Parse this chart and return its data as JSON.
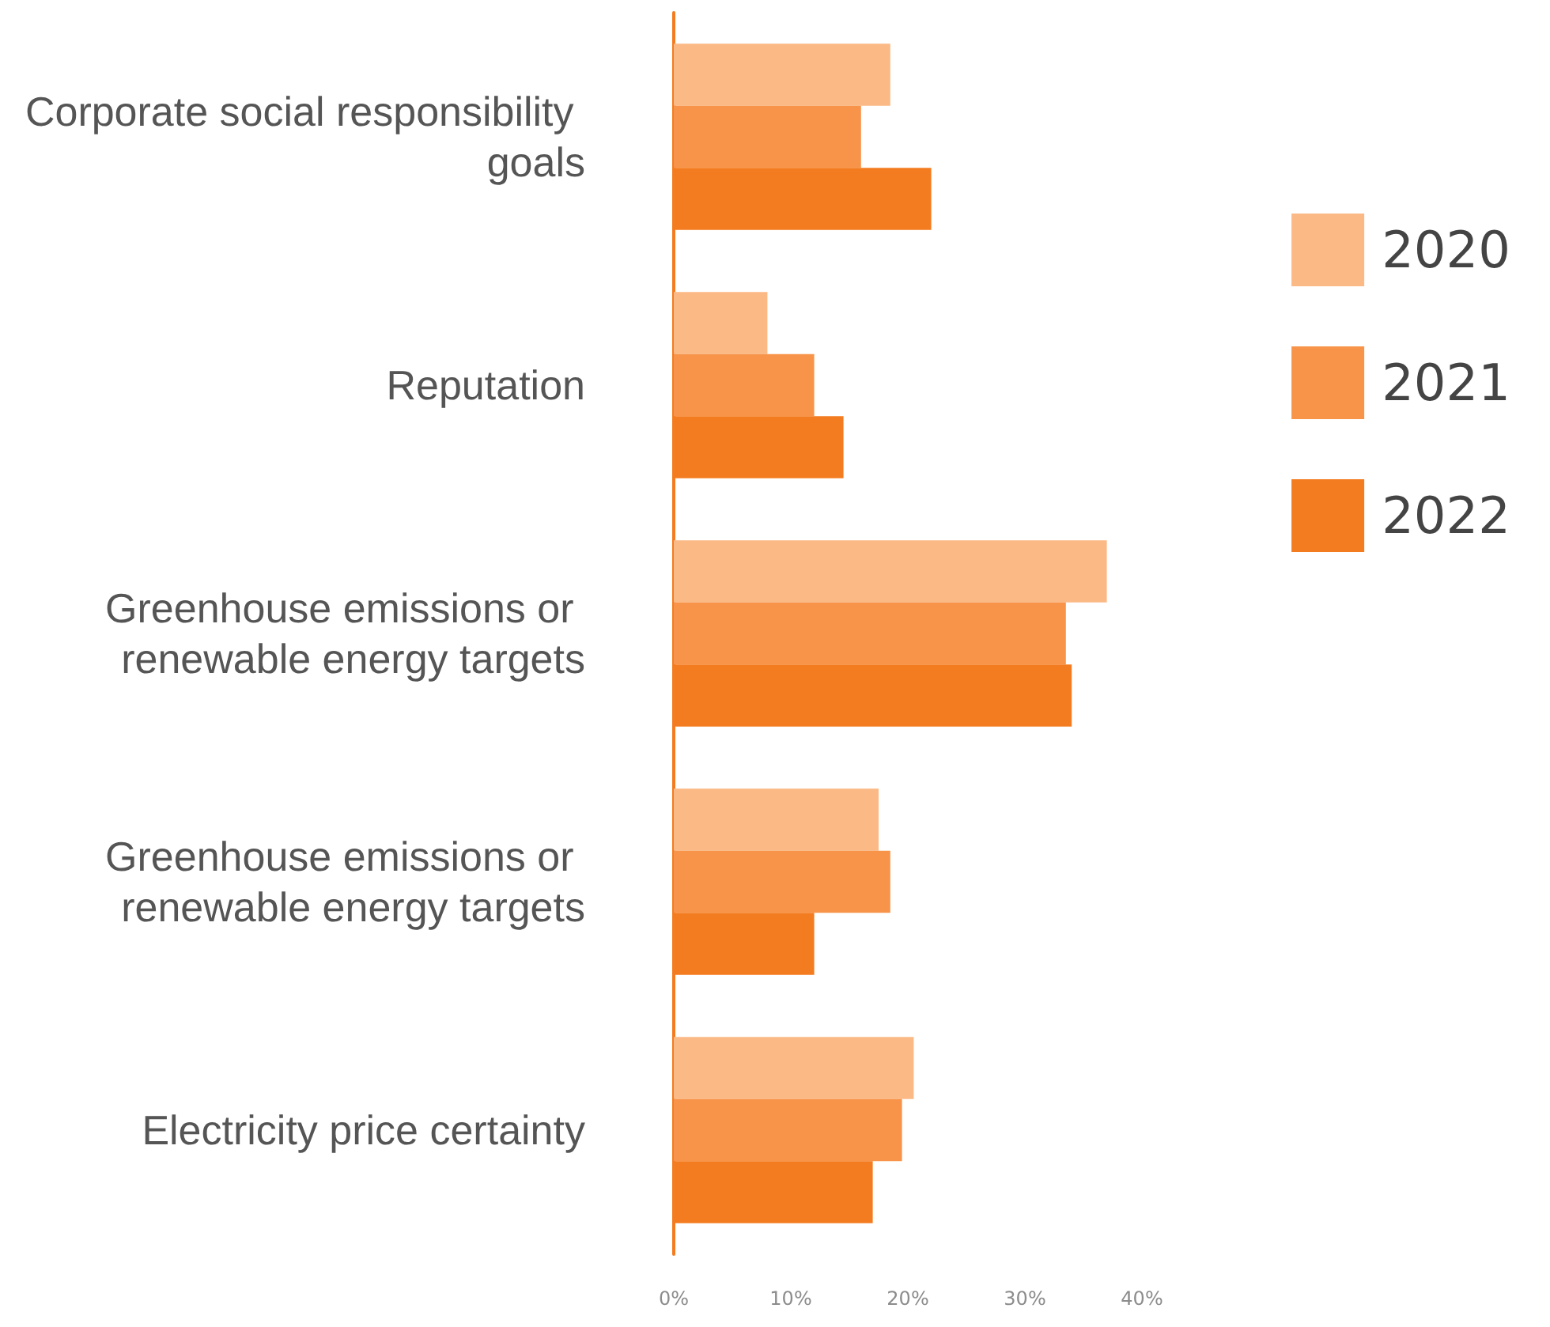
{
  "chart_data": {
    "type": "bar",
    "orientation": "horizontal",
    "categories": [
      "Corporate social responsibility goals",
      "Reputation",
      "Greenhouse emissions or renewable energy targets",
      "Greenhouse emissions or renewable energy targets",
      "Electricity price certainty"
    ],
    "series": [
      {
        "name": "2020",
        "color": "#fbb985",
        "values": [
          18.5,
          8,
          37,
          17.5,
          20.5
        ]
      },
      {
        "name": "2021",
        "color": "#f7944a",
        "values": [
          16,
          12,
          33.5,
          18.5,
          19.5
        ]
      },
      {
        "name": "2022",
        "color": "#f47c20",
        "values": [
          22,
          14.5,
          34,
          12,
          17
        ]
      }
    ],
    "xlim": [
      0,
      40
    ],
    "xticks": [
      {
        "value": 0,
        "label": "0%"
      },
      {
        "value": 10,
        "label": "10%"
      },
      {
        "value": 20,
        "label": "20%"
      },
      {
        "value": 30,
        "label": "30%"
      },
      {
        "value": 40,
        "label": "40%"
      }
    ],
    "grid": false,
    "legend": "right"
  }
}
